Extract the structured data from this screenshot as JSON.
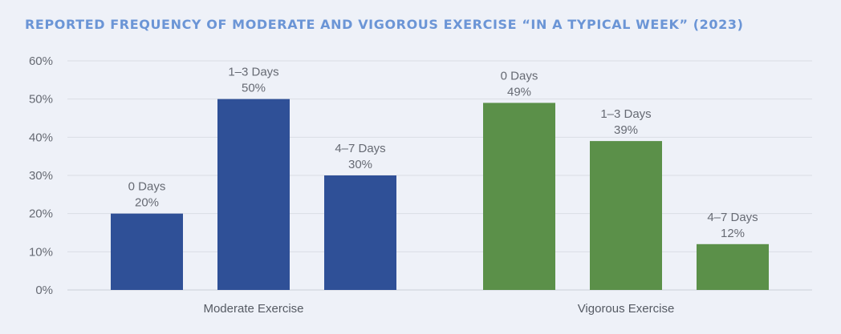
{
  "chart_data": {
    "type": "bar",
    "title": "REPORTED FREQUENCY OF MODERATE AND VIGOROUS EXERCISE “IN A TYPICAL WEEK” (2023)",
    "ylim": [
      0,
      60
    ],
    "yticks": [
      "0%",
      "10%",
      "20%",
      "30%",
      "40%",
      "50%",
      "60%"
    ],
    "grid": true,
    "groups": [
      {
        "name": "Moderate Exercise",
        "color": "#2f5097",
        "bars": [
          {
            "category": "0 Days",
            "value": 20,
            "label": "20%"
          },
          {
            "category": "1–3 Days",
            "value": 50,
            "label": "50%"
          },
          {
            "category": "4–7 Days",
            "value": 30,
            "label": "30%"
          }
        ]
      },
      {
        "name": "Vigorous Exercise",
        "color": "#5b9049",
        "bars": [
          {
            "category": "0 Days",
            "value": 49,
            "label": "49%"
          },
          {
            "category": "1–3 Days",
            "value": 39,
            "label": "39%"
          },
          {
            "category": "4–7 Days",
            "value": 12,
            "label": "12%"
          }
        ]
      }
    ]
  }
}
